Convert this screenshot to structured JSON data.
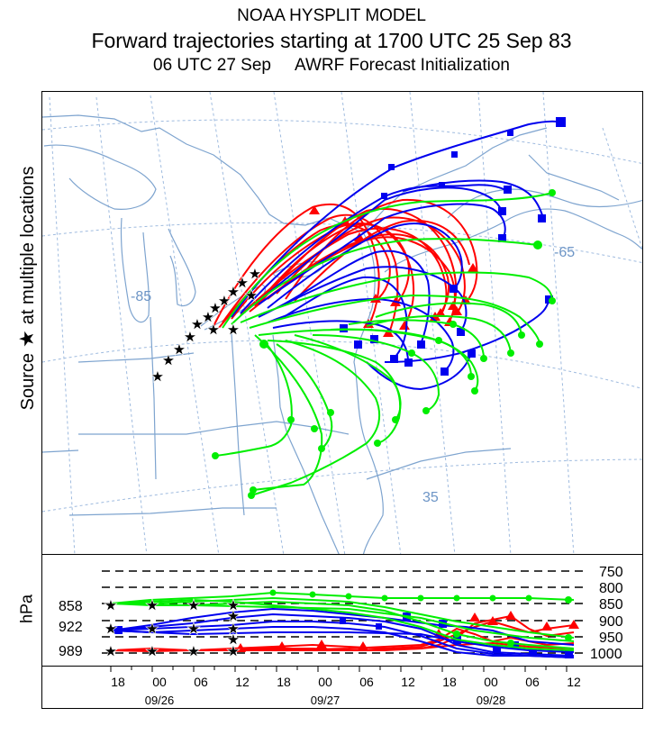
{
  "title": {
    "line1": "NOAA HYSPLIT MODEL",
    "line2": "Forward trajectories starting at 1700 UTC 25 Sep 83",
    "line3_time": "06 UTC 27 Sep",
    "line3_model": "AWRF  Forecast Initialization"
  },
  "side_label": {
    "prefix": "Source",
    "star": "★",
    "suffix": "at multiple locations"
  },
  "map": {
    "longitude_labels": [
      "-85",
      "-65"
    ],
    "latitude_labels": [
      "35"
    ],
    "colors": {
      "coast": "#7ea4cf",
      "grid": "#9fbbdf",
      "grid_label": "#6d95c6",
      "red": "#ff0000",
      "blue": "#0000ee",
      "green": "#00ee00",
      "source": "#000000"
    }
  },
  "profile": {
    "axis_title": "hPa",
    "source_levels": [
      "858",
      "922",
      "989"
    ],
    "pressure_levels": [
      "750",
      "800",
      "850",
      "900",
      "950",
      "1000"
    ]
  },
  "time_axis": {
    "hours": [
      "18",
      "00",
      "06",
      "12",
      "18",
      "00",
      "06",
      "12",
      "18",
      "00",
      "06",
      "12"
    ],
    "dates": [
      "09/26",
      "09/27",
      "09/28"
    ]
  }
}
